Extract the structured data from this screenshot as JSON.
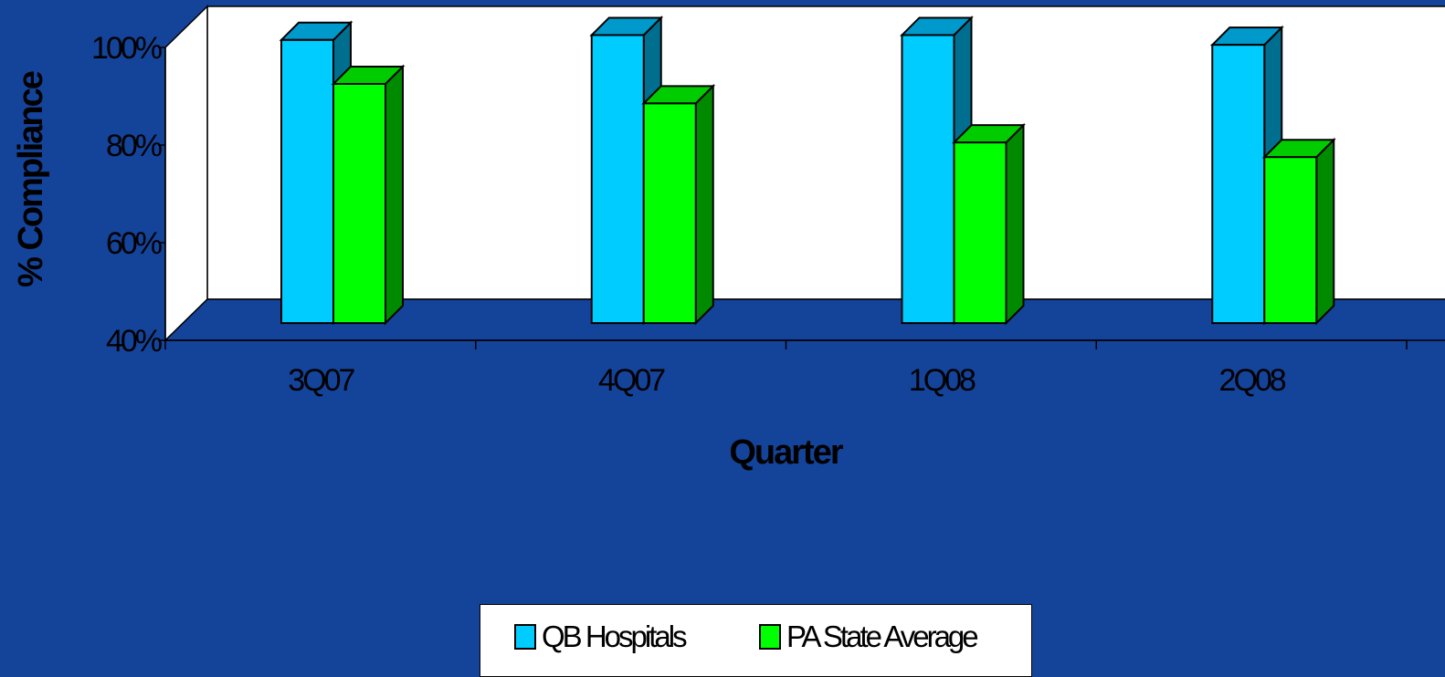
{
  "chart_data": {
    "type": "bar",
    "three_d": true,
    "categories": [
      "3Q07",
      "4Q07",
      "1Q08",
      "2Q08"
    ],
    "series": [
      {
        "name": "QB Hospitals",
        "values": [
          98,
          99,
          99,
          97
        ],
        "color": "#00CCFF",
        "top_color": "#0099CC",
        "side_color": "#006F8F"
      },
      {
        "name": "PA State Average",
        "values": [
          89,
          85,
          77,
          74
        ],
        "color": "#00FF00",
        "top_color": "#00CC00",
        "side_color": "#008A00"
      }
    ],
    "xlabel": "Quarter",
    "ylabel": "% Compliance",
    "ylim": [
      40,
      100
    ],
    "yticks": [
      "40%",
      "60%",
      "80%",
      "100%"
    ],
    "ytick_values": [
      40,
      60,
      80,
      100
    ],
    "legend_position": "bottom",
    "colors": {
      "background": "#14439A",
      "wall": "#FFFFFF",
      "floor": "#14439A"
    }
  }
}
